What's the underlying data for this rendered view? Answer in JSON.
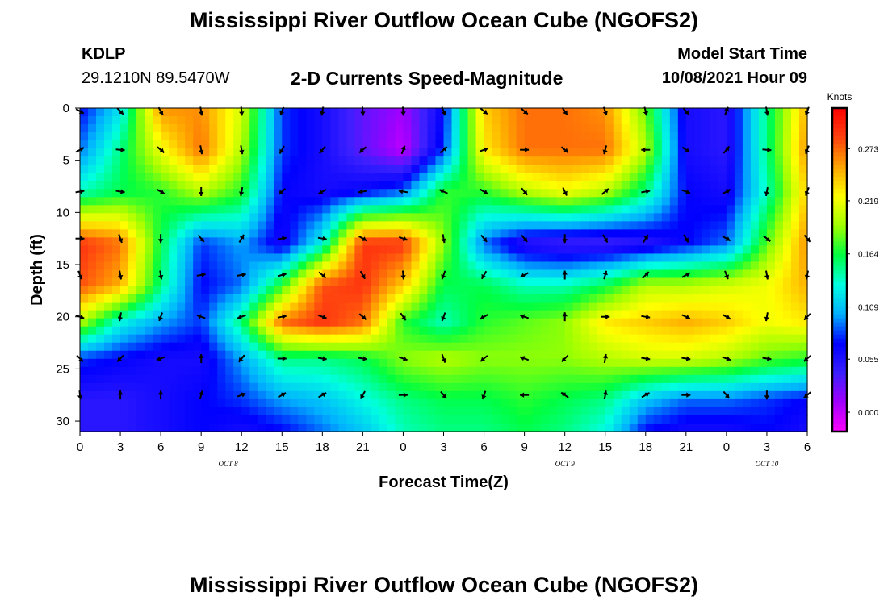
{
  "header": {
    "title": "Mississippi River Outflow Ocean Cube (NGOFS2)",
    "station_id": "KDLP",
    "station_coords": "29.1210N  89.5470W",
    "subtitle": "2-D Currents Speed-Magnitude",
    "model_start_label": "Model Start Time",
    "model_start_value": "10/08/2021 Hour 09"
  },
  "footer": {
    "title": "Mississippi River Outflow Ocean Cube (NGOFS2)"
  },
  "colors": {
    "scale": [
      "#ff00ff",
      "#a000ff",
      "#3a20ff",
      "#0000ff",
      "#00b0ff",
      "#00ffe0",
      "#00ff40",
      "#a0ff00",
      "#ffff00",
      "#ffa500",
      "#ff4010",
      "#ff0000"
    ],
    "arrow": "#000000"
  },
  "chart_data": {
    "type": "heatmap",
    "title": "2-D Currents Speed-Magnitude",
    "xlabel": "Forecast Time(Z)",
    "ylabel": "Depth (ft)",
    "x_ticks": [
      "0",
      "3",
      "6",
      "9",
      "12",
      "15",
      "18",
      "21",
      "0",
      "3",
      "6",
      "9",
      "12",
      "15",
      "18",
      "21",
      "0",
      "3",
      "6"
    ],
    "x_hours": [
      0,
      3,
      6,
      9,
      12,
      15,
      18,
      21,
      24,
      27,
      30,
      33,
      36,
      39,
      42,
      45,
      48,
      51,
      54
    ],
    "date_labels": [
      {
        "label": "OCT 8",
        "hour": 11
      },
      {
        "label": "OCT 9",
        "hour": 36
      },
      {
        "label": "OCT 10",
        "hour": 51
      }
    ],
    "y_ticks": [
      0,
      5,
      10,
      15,
      20,
      25,
      30
    ],
    "ylim": [
      0,
      31
    ],
    "xlim": [
      0,
      54
    ],
    "colorbar": {
      "unit": "Knots",
      "ticks": [
        "0.273",
        "0.219",
        "0.164",
        "0.109",
        "0.055",
        "0.000"
      ],
      "tick_values": [
        0.273,
        0.219,
        0.164,
        0.109,
        0.055,
        0.0
      ],
      "range": [
        -0.02,
        0.315
      ]
    },
    "grid": {
      "x_hours": [
        0,
        3,
        6,
        9,
        12,
        15,
        18,
        21,
        24,
        27,
        30,
        33,
        36,
        39,
        42,
        45,
        48,
        51,
        54
      ],
      "depths": [
        0,
        4,
        8,
        13,
        17,
        20.5,
        24,
        28,
        31
      ],
      "speed": [
        [
          0.07,
          0.12,
          0.26,
          0.26,
          0.21,
          0.08,
          0.06,
          0.03,
          0.01,
          0.07,
          0.24,
          0.27,
          0.27,
          0.26,
          0.18,
          0.06,
          0.05,
          0.15,
          0.25
        ],
        [
          0.09,
          0.15,
          0.22,
          0.27,
          0.2,
          0.08,
          0.06,
          0.03,
          0.0,
          0.08,
          0.23,
          0.27,
          0.27,
          0.27,
          0.2,
          0.06,
          0.05,
          0.15,
          0.26
        ],
        [
          0.14,
          0.16,
          0.17,
          0.2,
          0.17,
          0.07,
          0.06,
          0.07,
          0.09,
          0.17,
          0.17,
          0.2,
          0.22,
          0.2,
          0.15,
          0.07,
          0.06,
          0.14,
          0.24
        ],
        [
          0.29,
          0.27,
          0.16,
          0.08,
          0.1,
          0.06,
          0.13,
          0.29,
          0.29,
          0.19,
          0.09,
          0.05,
          0.04,
          0.04,
          0.05,
          0.07,
          0.09,
          0.18,
          0.26
        ],
        [
          0.28,
          0.25,
          0.15,
          0.07,
          0.09,
          0.17,
          0.28,
          0.29,
          0.24,
          0.16,
          0.16,
          0.14,
          0.14,
          0.16,
          0.2,
          0.2,
          0.21,
          0.22,
          0.25
        ],
        [
          0.2,
          0.13,
          0.1,
          0.08,
          0.15,
          0.27,
          0.29,
          0.27,
          0.17,
          0.14,
          0.17,
          0.18,
          0.19,
          0.23,
          0.24,
          0.25,
          0.24,
          0.22,
          0.23
        ],
        [
          0.08,
          0.07,
          0.06,
          0.06,
          0.1,
          0.15,
          0.15,
          0.16,
          0.19,
          0.2,
          0.19,
          0.19,
          0.19,
          0.2,
          0.21,
          0.21,
          0.2,
          0.18,
          0.17
        ],
        [
          0.05,
          0.05,
          0.06,
          0.07,
          0.08,
          0.1,
          0.11,
          0.13,
          0.15,
          0.16,
          0.16,
          0.17,
          0.16,
          0.15,
          0.11,
          0.09,
          0.09,
          0.08,
          0.07
        ],
        [
          0.05,
          0.05,
          0.06,
          0.07,
          0.06,
          0.07,
          0.09,
          0.11,
          0.14,
          0.15,
          0.15,
          0.16,
          0.15,
          0.13,
          0.07,
          0.06,
          0.06,
          0.07,
          0.06
        ]
      ]
    },
    "arrow_vectors": {
      "x_hours": [
        0,
        3,
        6,
        9,
        12,
        15,
        18,
        21,
        24,
        27,
        30,
        33,
        36,
        39,
        42,
        45,
        48,
        51,
        54
      ],
      "depths": [
        0.3,
        4,
        8,
        12.5,
        16,
        20,
        24,
        27.5
      ],
      "directions_deg": [
        [
          120,
          135,
          150,
          170,
          175,
          200,
          190,
          175,
          175,
          160,
          130,
          130,
          145,
          160,
          165,
          140,
          20,
          170,
          200
        ],
        [
          60,
          95,
          130,
          170,
          170,
          210,
          220,
          230,
          20,
          50,
          70,
          90,
          130,
          195,
          270,
          125,
          40,
          95,
          200
        ],
        [
          80,
          100,
          120,
          180,
          190,
          230,
          240,
          260,
          280,
          295,
          120,
          140,
          155,
          50,
          80,
          110,
          60,
          190,
          200
        ],
        [
          90,
          160,
          180,
          140,
          30,
          80,
          100,
          120,
          110,
          170,
          140,
          140,
          180,
          150,
          30,
          150,
          120,
          130,
          140
        ],
        [
          160,
          170,
          170,
          80,
          80,
          75,
          130,
          150,
          175,
          200,
          210,
          240,
          0,
          15,
          45,
          60,
          160,
          170,
          190
        ],
        [
          110,
          190,
          200,
          290,
          250,
          80,
          110,
          130,
          145,
          200,
          240,
          290,
          0,
          90,
          100,
          115,
          120,
          190,
          225
        ],
        [
          135,
          225,
          250,
          0,
          220,
          90,
          100,
          100,
          110,
          160,
          230,
          290,
          225,
          10,
          100,
          100,
          110,
          100,
          230
        ],
        [
          175,
          0,
          0,
          15,
          70,
          60,
          60,
          210,
          90,
          140,
          200,
          270,
          305,
          10,
          60,
          90,
          140,
          180,
          230
        ]
      ]
    }
  }
}
